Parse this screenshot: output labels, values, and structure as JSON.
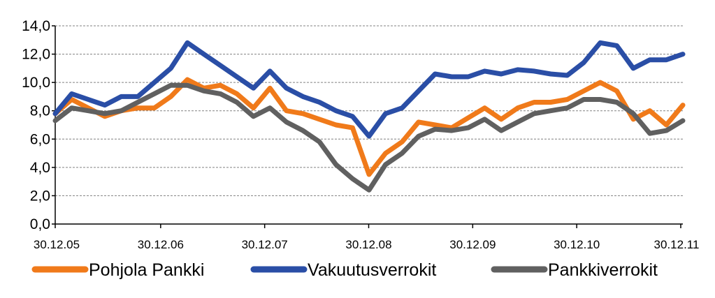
{
  "chart_data": {
    "type": "line",
    "title": "",
    "xlabel": "",
    "ylabel": "",
    "ylim": [
      0,
      14
    ],
    "y_ticks": [
      "0,0",
      "2,0",
      "4,0",
      "6,0",
      "8,0",
      "10,0",
      "12,0",
      "14,0"
    ],
    "x_ticks": [
      "30.12.05",
      "30.12.06",
      "30.12.07",
      "30.12.08",
      "30.12.09",
      "30.12.10",
      "30.12.11"
    ],
    "grid": "horizontal dashed",
    "legend_position": "bottom",
    "x": [
      "30.12.05",
      "02.2006",
      "04.2006",
      "06.2006",
      "08.2006",
      "10.2006",
      "30.12.06",
      "02.2007",
      "04.2007",
      "06.2007",
      "08.2007",
      "10.2007",
      "30.12.07",
      "02.2008",
      "04.2008",
      "06.2008",
      "08.2008",
      "10.2008",
      "11.2008",
      "30.12.08",
      "02.2009",
      "04.2009",
      "06.2009",
      "08.2009",
      "10.2009",
      "30.12.09",
      "02.2010",
      "04.2010",
      "06.2010",
      "08.2010",
      "10.2010",
      "30.12.10",
      "02.2011",
      "04.2011",
      "06.2011",
      "08.2011",
      "10.2011",
      "11.2011",
      "01.2012"
    ],
    "series": [
      {
        "name": "Pohjola Pankki",
        "color": "#f07a1a",
        "values": [
          7.8,
          8.8,
          8.2,
          7.6,
          8.0,
          8.2,
          8.2,
          9.0,
          10.2,
          9.6,
          9.8,
          9.2,
          8.2,
          9.6,
          8.0,
          7.8,
          7.4,
          7.0,
          6.8,
          3.5,
          5.0,
          5.8,
          7.2,
          7.0,
          6.8,
          7.5,
          8.2,
          7.4,
          8.2,
          8.6,
          8.6,
          8.8,
          9.4,
          10.0,
          9.4,
          7.4,
          8.0,
          7.0,
          8.4
        ]
      },
      {
        "name": "Vakuutusverrokit",
        "color": "#2a4ea6",
        "values": [
          7.8,
          9.2,
          8.8,
          8.4,
          9.0,
          9.0,
          10.0,
          11.0,
          12.8,
          12.0,
          11.2,
          10.4,
          9.6,
          10.8,
          9.6,
          9.0,
          8.6,
          8.0,
          7.6,
          6.2,
          7.8,
          8.2,
          9.4,
          10.6,
          10.4,
          10.4,
          10.8,
          10.6,
          10.9,
          10.8,
          10.6,
          10.5,
          11.4,
          12.8,
          12.6,
          11.0,
          11.6,
          11.6,
          12.0
        ]
      },
      {
        "name": "Pankkiverrokit",
        "color": "#606060",
        "values": [
          7.3,
          8.2,
          8.0,
          7.8,
          8.0,
          8.6,
          9.2,
          9.8,
          9.8,
          9.4,
          9.2,
          8.6,
          7.6,
          8.2,
          7.2,
          6.6,
          5.8,
          4.2,
          3.2,
          2.4,
          4.2,
          5.0,
          6.2,
          6.7,
          6.6,
          6.8,
          7.4,
          6.6,
          7.2,
          7.8,
          8.0,
          8.2,
          8.8,
          8.8,
          8.6,
          7.8,
          6.4,
          6.6,
          7.3
        ]
      }
    ]
  }
}
